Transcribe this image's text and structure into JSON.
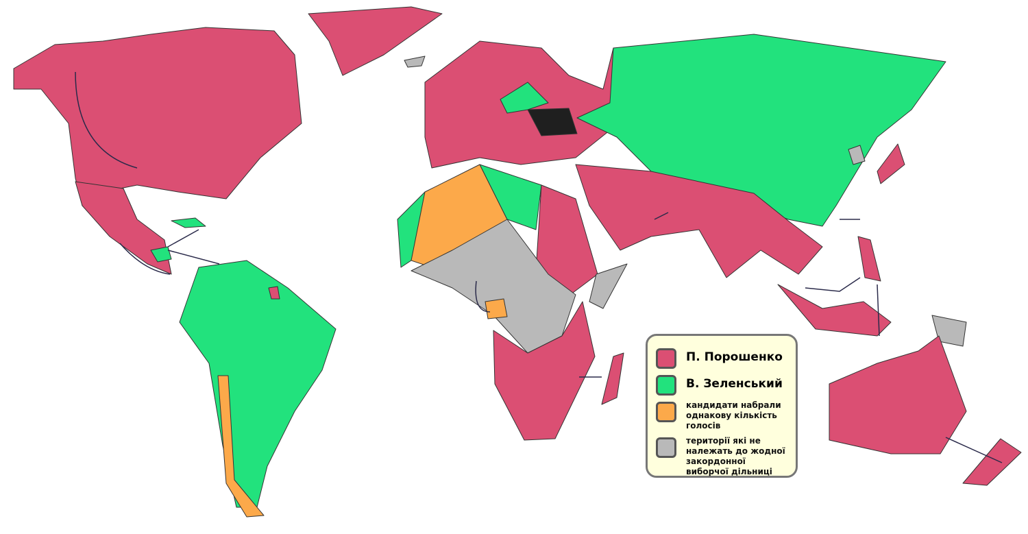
{
  "colors": {
    "poroshenko": "#db4f73",
    "zelensky": "#22e27d",
    "tie": "#fca94a",
    "no_precinct": "#b9b9b9",
    "ukraine": "#1f1f1f",
    "legend_background": "#ffffdd"
  },
  "legend": {
    "items": [
      {
        "label": "П. Порошенко",
        "color": "#db4f73"
      },
      {
        "label": "В. Зеленський",
        "color": "#22e27d"
      },
      {
        "label": "кандидати набрали однакову кількість голосів",
        "color": "#fca94a"
      },
      {
        "label": "території які не належать до жодної закордонної виборчої дільниці",
        "color": "#b9b9b9"
      }
    ]
  }
}
